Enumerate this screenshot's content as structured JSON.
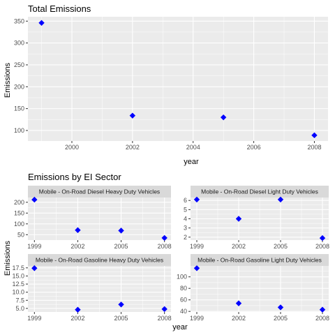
{
  "chart_data": [
    {
      "type": "scatter",
      "title": "Total Emissions",
      "xlabel": "year",
      "ylabel": "Emissions",
      "x": [
        1999,
        2002,
        2005,
        2008
      ],
      "y": [
        346,
        134,
        130,
        89
      ],
      "xlim": [
        1998.55,
        2008.45
      ],
      "ylim": [
        76,
        360
      ],
      "xticks": [
        2000,
        2002,
        2004,
        2006,
        2008
      ],
      "yticks": [
        100,
        150,
        200,
        250,
        300,
        350
      ],
      "xtick_labels": [
        "2000",
        "2002",
        "2004",
        "2006",
        "2008"
      ],
      "ytick_labels": [
        "100",
        "150",
        "200",
        "250",
        "300",
        "350"
      ],
      "marker_color": "#0000ff",
      "grid": true
    },
    {
      "type": "scatter",
      "title": "Emissions by EI Sector",
      "xlabel": "year",
      "ylabel": "Emissions",
      "grid": true,
      "marker_color": "#0000ff",
      "facets": [
        {
          "label": "Mobile - On-Road Diesel Heavy Duty Vehicles",
          "x": [
            1999,
            2002,
            2005,
            2008
          ],
          "y": [
            212,
            71,
            69,
            35
          ],
          "xlim": [
            1998.55,
            2008.45
          ],
          "ylim": [
            25,
            222
          ],
          "xticks": [
            1999,
            2002,
            2005,
            2008
          ],
          "xtick_labels": [
            "1999",
            "2002",
            "2005",
            "2008"
          ],
          "yticks": [
            50,
            100,
            150,
            200
          ],
          "ytick_labels": [
            "50",
            "100",
            "150",
            "200"
          ]
        },
        {
          "label": "Mobile - On-Road Diesel Light Duty Vehicles",
          "x": [
            1999,
            2002,
            2005,
            2008
          ],
          "y": [
            6.1,
            4.0,
            6.1,
            1.9
          ],
          "xlim": [
            1998.55,
            2008.45
          ],
          "ylim": [
            1.68,
            6.32
          ],
          "xticks": [
            1999,
            2002,
            2005,
            2008
          ],
          "xtick_labels": [
            "1999",
            "2002",
            "2005",
            "2008"
          ],
          "yticks": [
            2,
            3,
            4,
            5,
            6
          ],
          "ytick_labels": [
            "2",
            "3",
            "4",
            "5",
            "6"
          ]
        },
        {
          "label": "Mobile - On-Road Gasoline Heavy Duty Vehicles",
          "x": [
            1999,
            2002,
            2005,
            2008
          ],
          "y": [
            17.4,
            4.6,
            6.2,
            4.8
          ],
          "xlim": [
            1998.55,
            2008.45
          ],
          "ylim": [
            3.9,
            18.1
          ],
          "xticks": [
            1999,
            2002,
            2005,
            2008
          ],
          "xtick_labels": [
            "1999",
            "2002",
            "2005",
            "2008"
          ],
          "yticks": [
            5,
            7.5,
            10,
            12.5,
            15,
            17.5
          ],
          "ytick_labels": [
            "5.0",
            "7.5",
            "10.0",
            "12.5",
            "15.0",
            "17.5"
          ]
        },
        {
          "label": "Mobile - On-Road Gasoline Light Duty Vehicles",
          "x": [
            1999,
            2002,
            2005,
            2008
          ],
          "y": [
            115,
            54,
            47,
            43
          ],
          "xlim": [
            1998.55,
            2008.45
          ],
          "ylim": [
            39,
            119
          ],
          "xticks": [
            1999,
            2002,
            2005,
            2008
          ],
          "xtick_labels": [
            "1999",
            "2002",
            "2005",
            "2008"
          ],
          "yticks": [
            40,
            60,
            80,
            100
          ],
          "ytick_labels": [
            "40",
            "60",
            "80",
            "100"
          ]
        }
      ]
    }
  ]
}
